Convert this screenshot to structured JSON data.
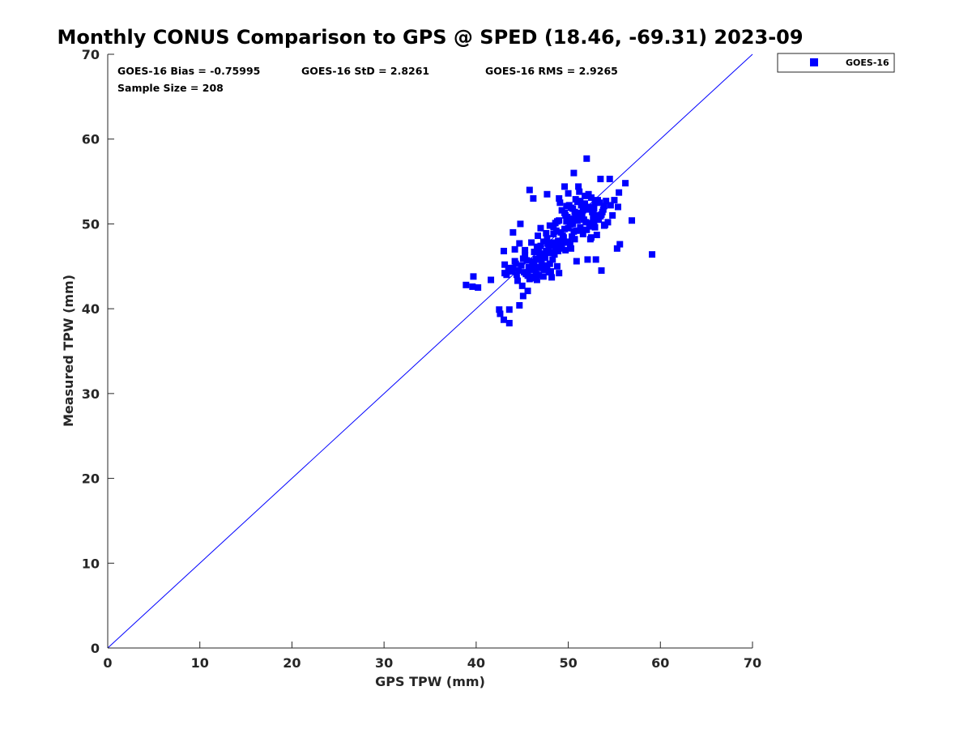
{
  "chart_data": {
    "type": "scatter",
    "title": "Monthly CONUS Comparison to GPS @ SPED (18.46, -69.31) 2023-09",
    "xlabel": "GPS TPW (mm)",
    "ylabel": "Measured TPW (mm)",
    "xlim": [
      0,
      70
    ],
    "ylim": [
      0,
      70
    ],
    "xticks": [
      "0",
      "10",
      "20",
      "30",
      "40",
      "50",
      "60",
      "70"
    ],
    "yticks": [
      "0",
      "10",
      "20",
      "30",
      "40",
      "50",
      "60",
      "70"
    ],
    "grid": false,
    "legend_position": "outside-top-right",
    "stats": {
      "bias": "GOES-16 Bias = -0.75995",
      "std": "GOES-16 StD = 2.8261",
      "rms": "GOES-16 RMS = 2.9265",
      "sample": "Sample Size = 208"
    },
    "reference_line": {
      "from": [
        0,
        0
      ],
      "to": [
        70,
        70
      ],
      "color": "#0000ff"
    },
    "series": [
      {
        "name": "GOES-16",
        "color": "#0000ff",
        "marker": "square",
        "points": [
          [
            38.9,
            42.8
          ],
          [
            39.6,
            42.6
          ],
          [
            39.7,
            43.8
          ],
          [
            40.2,
            42.5
          ],
          [
            41.6,
            43.4
          ],
          [
            42.5,
            39.9
          ],
          [
            42.6,
            39.4
          ],
          [
            43.0,
            38.7
          ],
          [
            43.1,
            44.2
          ],
          [
            43.1,
            45.2
          ],
          [
            43.0,
            46.8
          ],
          [
            43.5,
            44.8
          ],
          [
            43.6,
            38.3
          ],
          [
            43.6,
            39.9
          ],
          [
            43.9,
            44.4
          ],
          [
            44.0,
            49.0
          ],
          [
            44.2,
            45.6
          ],
          [
            44.2,
            47.0
          ],
          [
            44.5,
            43.3
          ],
          [
            44.7,
            40.4
          ],
          [
            44.7,
            47.7
          ],
          [
            44.8,
            50.0
          ],
          [
            45.0,
            42.7
          ],
          [
            45.1,
            41.5
          ],
          [
            45.3,
            46.9
          ],
          [
            45.4,
            44.1
          ],
          [
            45.6,
            42.1
          ],
          [
            45.8,
            43.5
          ],
          [
            45.8,
            54.0
          ],
          [
            46.0,
            47.8
          ],
          [
            46.2,
            53.0
          ],
          [
            46.3,
            45.2
          ],
          [
            46.4,
            43.6
          ],
          [
            46.5,
            45.9
          ],
          [
            46.6,
            47.3
          ],
          [
            46.7,
            48.6
          ],
          [
            46.8,
            44.0
          ],
          [
            47.0,
            49.5
          ],
          [
            47.0,
            46.3
          ],
          [
            47.2,
            45.0
          ],
          [
            47.3,
            43.8
          ],
          [
            47.4,
            44.6
          ],
          [
            47.6,
            46.8
          ],
          [
            47.7,
            48.3
          ],
          [
            47.7,
            53.5
          ],
          [
            47.9,
            47.2
          ],
          [
            48.0,
            45.3
          ],
          [
            48.1,
            44.4
          ],
          [
            48.2,
            43.7
          ],
          [
            48.4,
            49.6
          ],
          [
            48.4,
            47.8
          ],
          [
            48.6,
            50.1
          ],
          [
            48.8,
            45.0
          ],
          [
            49.0,
            44.2
          ],
          [
            49.0,
            50.4
          ],
          [
            49.0,
            53.0
          ],
          [
            49.3,
            47.1
          ],
          [
            49.5,
            48.4
          ],
          [
            49.6,
            51.3
          ],
          [
            49.6,
            54.4
          ],
          [
            49.8,
            52.1
          ],
          [
            50.0,
            53.6
          ],
          [
            50.0,
            49.5
          ],
          [
            50.2,
            47.5
          ],
          [
            50.4,
            50.6
          ],
          [
            50.5,
            51.8
          ],
          [
            50.6,
            56.0
          ],
          [
            50.7,
            48.2
          ],
          [
            50.9,
            45.6
          ],
          [
            51.0,
            52.6
          ],
          [
            51.1,
            54.4
          ],
          [
            51.2,
            50.9
          ],
          [
            51.4,
            49.3
          ],
          [
            51.6,
            51.6
          ],
          [
            51.8,
            53.3
          ],
          [
            51.9,
            50.2
          ],
          [
            52.0,
            57.7
          ],
          [
            52.1,
            45.8
          ],
          [
            52.2,
            52.0
          ],
          [
            52.3,
            49.7
          ],
          [
            52.4,
            48.2
          ],
          [
            52.6,
            51.4
          ],
          [
            52.7,
            50.8
          ],
          [
            52.9,
            52.5
          ],
          [
            53.0,
            45.8
          ],
          [
            53.1,
            48.7
          ],
          [
            53.2,
            51.0
          ],
          [
            53.4,
            52.5
          ],
          [
            53.5,
            55.3
          ],
          [
            53.6,
            44.5
          ],
          [
            53.8,
            51.7
          ],
          [
            53.9,
            49.8
          ],
          [
            54.1,
            52.7
          ],
          [
            54.5,
            55.3
          ],
          [
            54.8,
            51.0
          ],
          [
            55.0,
            52.8
          ],
          [
            55.3,
            47.1
          ],
          [
            55.4,
            52.0
          ],
          [
            55.5,
            53.7
          ],
          [
            55.6,
            47.6
          ],
          [
            56.2,
            54.8
          ],
          [
            56.9,
            50.4
          ],
          [
            59.1,
            46.4
          ],
          [
            50.1,
            52.2
          ],
          [
            51.5,
            51.2
          ],
          [
            52.8,
            50.3
          ],
          [
            49.2,
            49.0
          ],
          [
            48.7,
            47.4
          ],
          [
            47.5,
            46.0
          ],
          [
            46.9,
            44.9
          ],
          [
            45.5,
            45.7
          ],
          [
            44.4,
            44.0
          ],
          [
            50.9,
            50.7
          ],
          [
            51.3,
            49.6
          ],
          [
            52.1,
            51.7
          ],
          [
            53.3,
            50.5
          ],
          [
            49.9,
            50.8
          ],
          [
            48.9,
            48.0
          ],
          [
            47.8,
            47.6
          ],
          [
            46.3,
            46.7
          ],
          [
            45.9,
            44.6
          ],
          [
            44.9,
            45.1
          ],
          [
            50.3,
            51.9
          ],
          [
            51.8,
            52.4
          ],
          [
            52.5,
            53.1
          ],
          [
            53.7,
            51.4
          ],
          [
            49.7,
            46.9
          ],
          [
            48.3,
            45.8
          ],
          [
            47.1,
            45.4
          ],
          [
            45.2,
            44.3
          ],
          [
            43.8,
            44.7
          ],
          [
            51.1,
            51.3
          ],
          [
            52.9,
            49.6
          ],
          [
            50.6,
            49.1
          ],
          [
            49.4,
            48.6
          ],
          [
            47.3,
            47.9
          ],
          [
            46.6,
            43.4
          ],
          [
            44.6,
            44.5
          ],
          [
            52.3,
            50.1
          ],
          [
            51.6,
            48.8
          ],
          [
            50.0,
            47.9
          ],
          [
            48.5,
            46.4
          ],
          [
            46.1,
            45.6
          ],
          [
            53.5,
            50.9
          ],
          [
            50.8,
            52.9
          ],
          [
            49.3,
            51.6
          ],
          [
            48.0,
            49.8
          ],
          [
            46.8,
            47.0
          ],
          [
            45.6,
            43.9
          ],
          [
            52.6,
            52.0
          ],
          [
            51.2,
            53.8
          ],
          [
            50.2,
            49.9
          ],
          [
            48.8,
            50.3
          ],
          [
            47.6,
            48.9
          ],
          [
            54.3,
            50.2
          ],
          [
            52.0,
            49.3
          ],
          [
            50.7,
            51.4
          ],
          [
            49.1,
            52.5
          ],
          [
            47.9,
            44.3
          ],
          [
            46.4,
            44.7
          ],
          [
            53.9,
            52.1
          ],
          [
            51.7,
            50.5
          ],
          [
            50.4,
            48.5
          ],
          [
            48.6,
            47.0
          ],
          [
            45.3,
            46.3
          ],
          [
            52.7,
            51.5
          ],
          [
            51.4,
            52.2
          ],
          [
            49.8,
            50.3
          ],
          [
            48.1,
            46.6
          ],
          [
            46.7,
            45.8
          ],
          [
            54.0,
            49.9
          ],
          [
            52.4,
            49.9
          ],
          [
            50.5,
            50.0
          ],
          [
            49.0,
            47.6
          ],
          [
            47.2,
            44.8
          ],
          [
            45.7,
            44.9
          ],
          [
            53.2,
            52.8
          ],
          [
            51.9,
            51.9
          ],
          [
            50.1,
            50.6
          ],
          [
            48.4,
            48.8
          ],
          [
            46.9,
            46.1
          ],
          [
            44.3,
            45.3
          ],
          [
            53.6,
            51.1
          ],
          [
            52.2,
            53.5
          ],
          [
            50.9,
            49.2
          ],
          [
            49.5,
            47.8
          ],
          [
            47.7,
            45.1
          ],
          [
            46.0,
            43.8
          ],
          [
            54.6,
            52.2
          ],
          [
            51.0,
            50.4
          ],
          [
            49.6,
            49.4
          ],
          [
            48.2,
            47.5
          ],
          [
            46.5,
            44.3
          ],
          [
            43.3,
            44.0
          ],
          [
            52.8,
            51.8
          ],
          [
            51.5,
            50.8
          ],
          [
            50.3,
            47.1
          ],
          [
            48.9,
            46.8
          ],
          [
            47.4,
            46.5
          ],
          [
            45.1,
            45.9
          ],
          [
            53.0,
            50.7
          ],
          [
            51.3,
            52.7
          ],
          [
            49.7,
            51.0
          ],
          [
            48.7,
            49.2
          ],
          [
            47.0,
            47.4
          ],
          [
            44.0,
            44.8
          ],
          [
            52.5,
            48.4
          ],
          [
            50.8,
            51.0
          ]
        ]
      }
    ]
  }
}
